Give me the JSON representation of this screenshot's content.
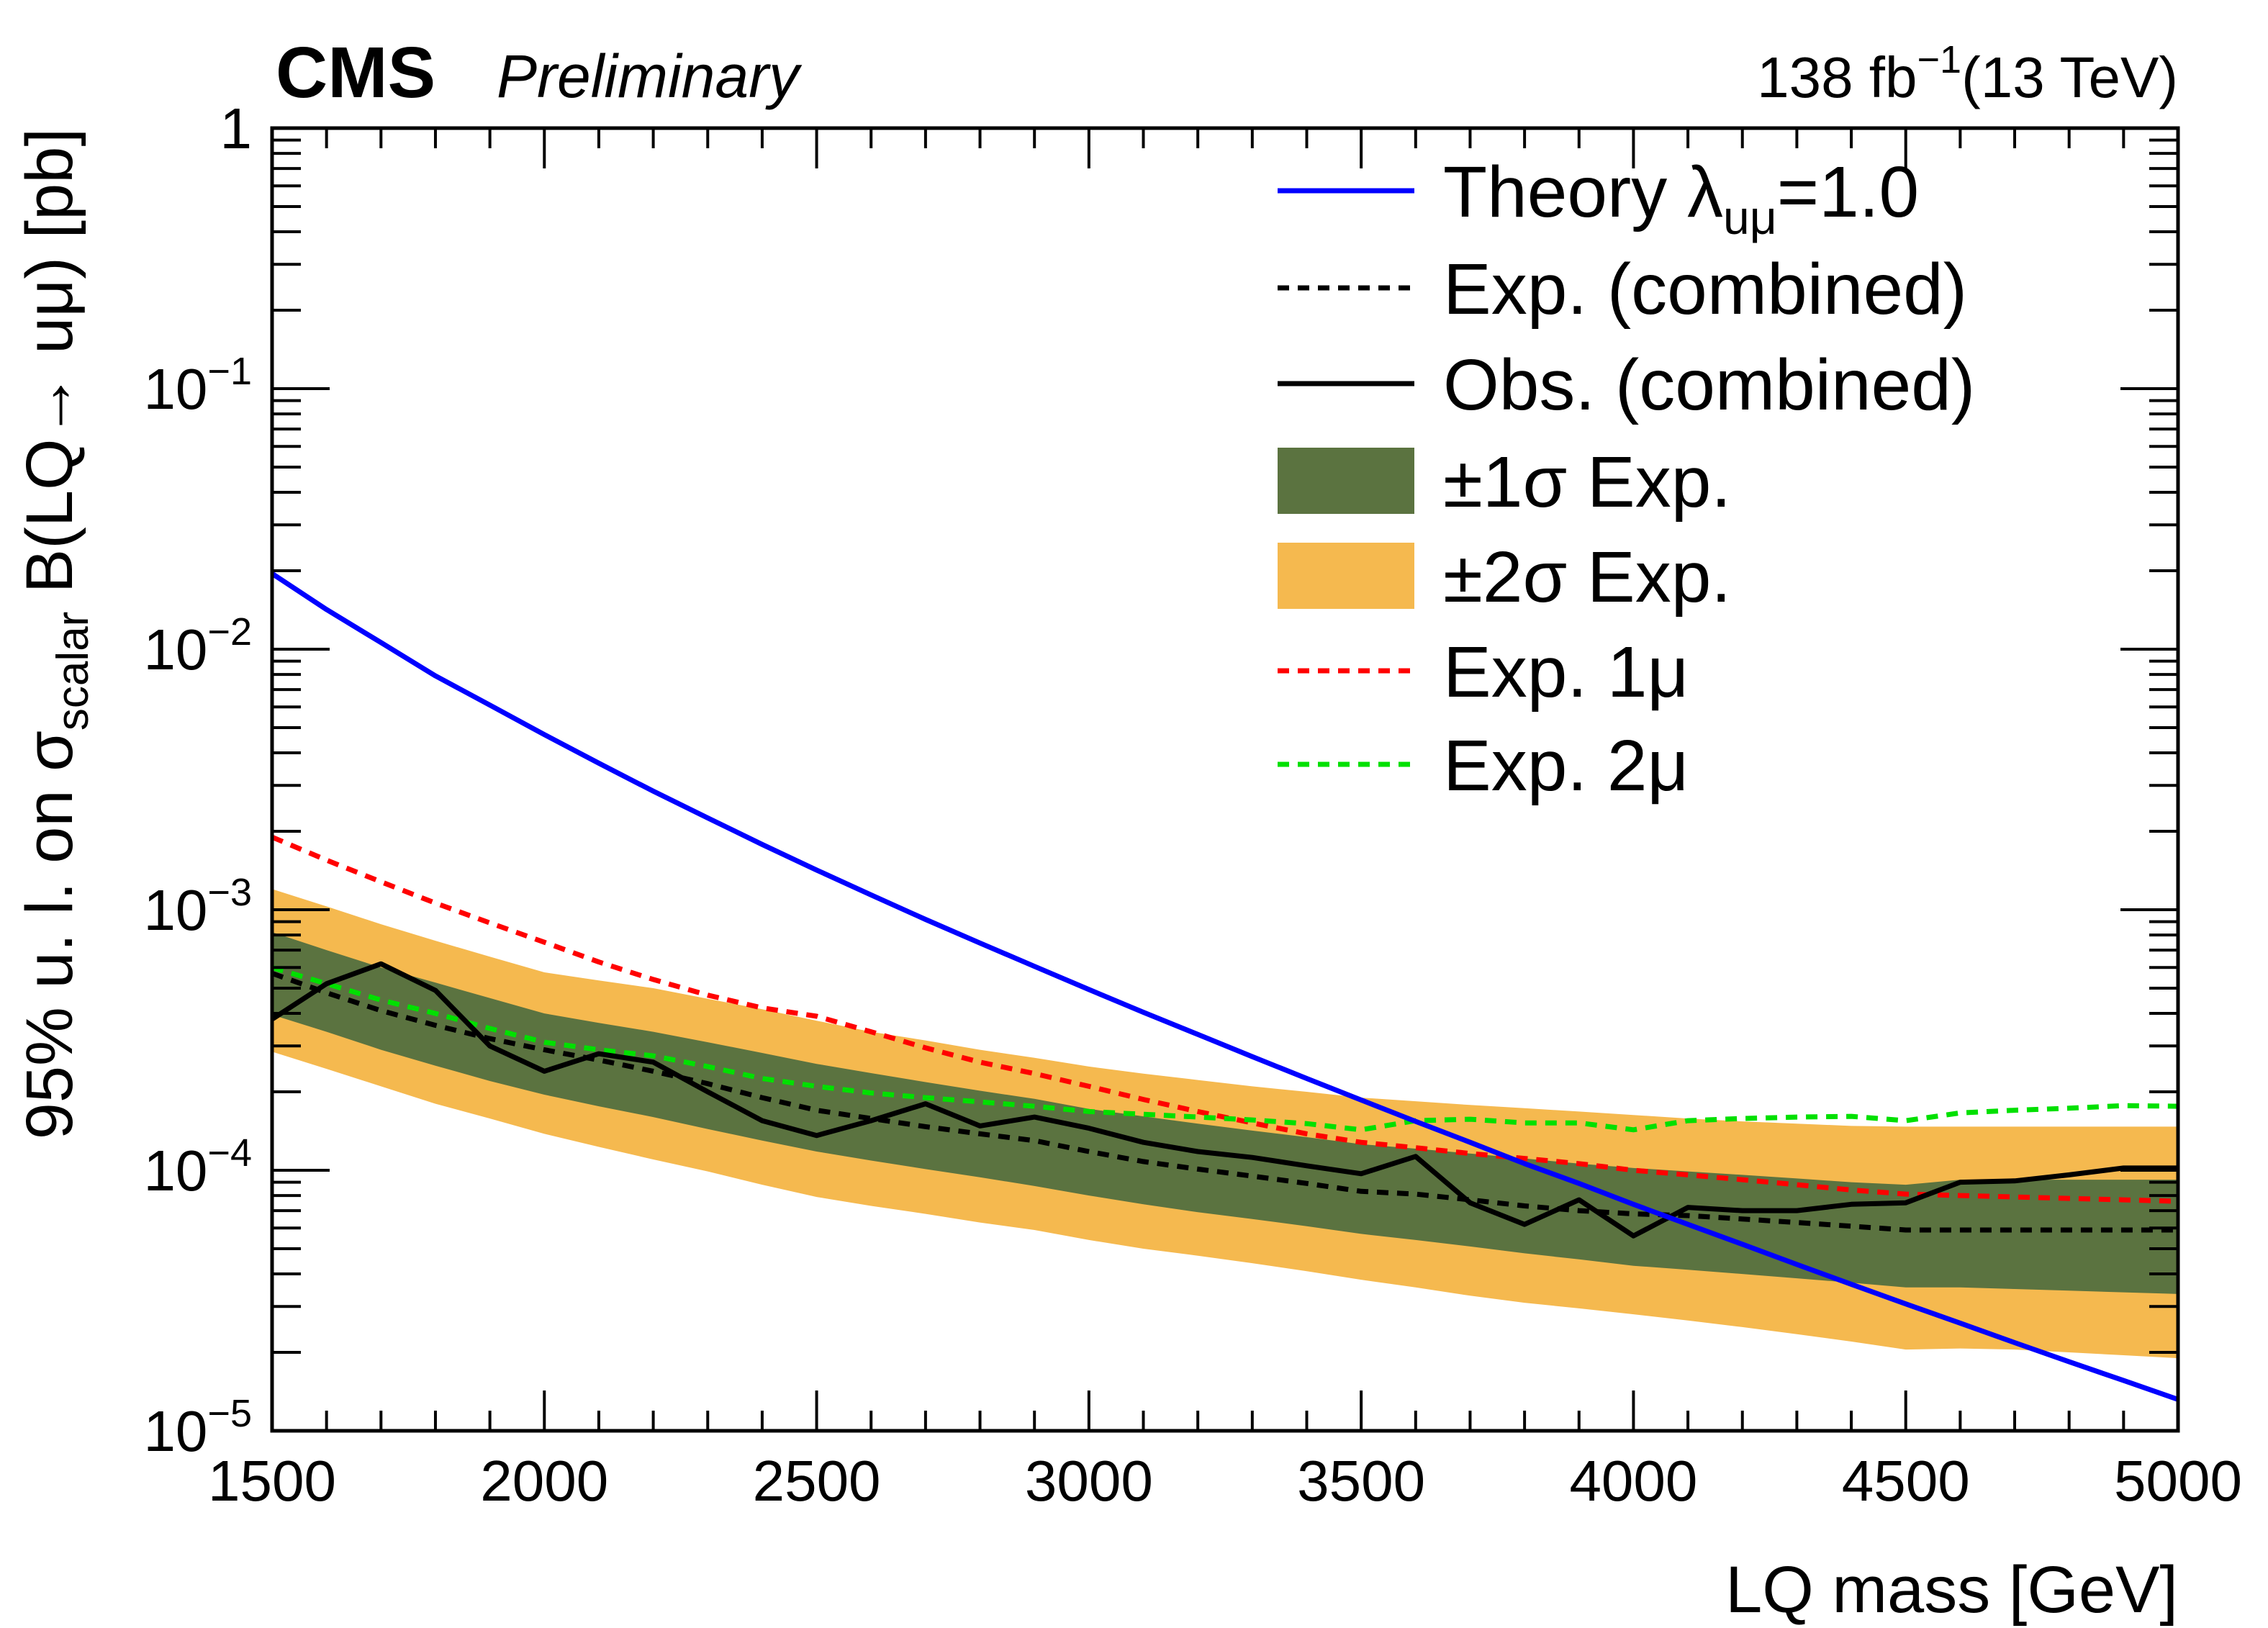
{
  "header": {
    "experiment": "CMS",
    "status": "Preliminary",
    "lumi": "138 fb",
    "lumi_exp": "−1",
    "energy": "(13 TeV)"
  },
  "chart_data": {
    "type": "line",
    "title": "",
    "xlabel": "LQ mass [GeV]",
    "ylabel": {
      "p1": "95% u. l. on σ",
      "sub": "scalar",
      "p2": " B(LQ→ uμ) [pb]"
    },
    "xlim": [
      1500,
      5000
    ],
    "ylim": [
      1e-05,
      1
    ],
    "yscale": "log",
    "xticks": [
      1500,
      2000,
      2500,
      3000,
      3500,
      4000,
      4500,
      5000
    ],
    "xticklabels": [
      "1500",
      "2000",
      "2500",
      "3000",
      "3500",
      "4000",
      "4500",
      "5000"
    ],
    "yticks": [
      {
        "value": 1e-05,
        "base": "10",
        "exp": "−5"
      },
      {
        "value": 0.0001,
        "base": "10",
        "exp": "−4"
      },
      {
        "value": 0.001,
        "base": "10",
        "exp": "−3"
      },
      {
        "value": 0.01,
        "base": "10",
        "exp": "−2"
      },
      {
        "value": 0.1,
        "base": "10",
        "exp": "−1"
      },
      {
        "value": 1,
        "base": "1",
        "exp": ""
      }
    ],
    "legend_position": "top-right",
    "legend": [
      {
        "key": "theory",
        "label": "Theory λ",
        "sub": "uμ",
        "suffix": "=1.0",
        "style": "solid",
        "color": "#0000ff"
      },
      {
        "key": "exp",
        "label": "Exp. (combined)",
        "style": "dashed",
        "color": "#000000"
      },
      {
        "key": "obs",
        "label": "Obs. (combined)",
        "style": "solid",
        "color": "#000000"
      },
      {
        "key": "band1",
        "label": "±1σ Exp.",
        "style": "box",
        "color": "#5b7340"
      },
      {
        "key": "band2",
        "label": "±2σ Exp.",
        "style": "box",
        "color": "#f5b94f"
      },
      {
        "key": "exp1mu",
        "label": "Exp. 1μ",
        "style": "dashed",
        "color": "#ff0000"
      },
      {
        "key": "exp2mu",
        "label": "Exp. 2μ",
        "style": "dashed",
        "color": "#00e000"
      }
    ],
    "series": [
      {
        "key": "theory",
        "name": "Theory λ_uμ=1.0",
        "x": [
          1500,
          1600,
          1700,
          1800,
          1900,
          2000,
          2100,
          2200,
          2300,
          2400,
          2500,
          2600,
          2700,
          2800,
          2900,
          3000,
          3100,
          3200,
          3300,
          3400,
          3500,
          3600,
          3700,
          3800,
          3900,
          4000,
          4100,
          4200,
          4300,
          4400,
          4500,
          4600,
          4700,
          4800,
          4900,
          5000
        ],
        "y": [
          0.0195,
          0.0142,
          0.0106,
          0.0079,
          0.0061,
          0.0047,
          0.00365,
          0.00285,
          0.00225,
          0.00178,
          0.00142,
          0.00114,
          0.000918,
          0.000745,
          0.000606,
          0.000494,
          0.000404,
          0.000332,
          0.000273,
          0.000225,
          0.000186,
          0.000154,
          0.000128,
          0.000106,
          8.9e-05,
          7.4e-05,
          6.2e-05,
          5.2e-05,
          4.35e-05,
          3.65e-05,
          3.07e-05,
          2.59e-05,
          2.18e-05,
          1.84e-05,
          1.56e-05,
          1.32e-05
        ]
      },
      {
        "key": "exp",
        "name": "Exp. (combined)",
        "x": [
          1500,
          1600,
          1700,
          1800,
          1900,
          2000,
          2100,
          2200,
          2300,
          2400,
          2500,
          2600,
          2700,
          2800,
          2900,
          3000,
          3100,
          3200,
          3300,
          3400,
          3500,
          3600,
          3700,
          3800,
          3900,
          4000,
          4100,
          4200,
          4300,
          4400,
          4500,
          4600,
          4700,
          4800,
          4900,
          5000
        ],
        "y": [
          0.00057,
          0.00048,
          0.00041,
          0.00036,
          0.00032,
          0.00029,
          0.000265,
          0.00024,
          0.000215,
          0.00019,
          0.00017,
          0.000158,
          0.000147,
          0.000138,
          0.00013,
          0.000118,
          0.000108,
          0.000101,
          9.5e-05,
          8.9e-05,
          8.3e-05,
          8.1e-05,
          7.7e-05,
          7.3e-05,
          7e-05,
          6.8e-05,
          6.7e-05,
          6.5e-05,
          6.3e-05,
          6.1e-05,
          5.9e-05,
          5.9e-05,
          5.9e-05,
          5.9e-05,
          5.9e-05,
          5.9e-05
        ]
      },
      {
        "key": "obs",
        "name": "Obs. (combined)",
        "x": [
          1500,
          1600,
          1700,
          1800,
          1900,
          2000,
          2100,
          2200,
          2300,
          2400,
          2500,
          2600,
          2700,
          2800,
          2900,
          3000,
          3100,
          3200,
          3300,
          3400,
          3500,
          3600,
          3700,
          3800,
          3900,
          4000,
          4100,
          4200,
          4300,
          4400,
          4500,
          4600,
          4700,
          4800,
          4900,
          5000
        ],
        "y": [
          0.00038,
          0.00052,
          0.00062,
          0.00049,
          0.0003,
          0.00024,
          0.00028,
          0.00026,
          0.0002,
          0.000155,
          0.000136,
          0.000155,
          0.00018,
          0.000148,
          0.00016,
          0.000145,
          0.000128,
          0.000118,
          0.000112,
          0.000104,
          9.7e-05,
          0.000113,
          7.5e-05,
          6.2e-05,
          7.7e-05,
          5.6e-05,
          7.2e-05,
          7e-05,
          7e-05,
          7.4e-05,
          7.5e-05,
          9e-05,
          9.1e-05,
          9.6e-05,
          0.000102,
          0.000102
        ]
      },
      {
        "key": "exp1mu",
        "name": "Exp. 1μ",
        "x": [
          1500,
          1600,
          1700,
          1800,
          1900,
          2000,
          2100,
          2200,
          2300,
          2400,
          2500,
          2600,
          2700,
          2800,
          2900,
          3000,
          3100,
          3200,
          3300,
          3400,
          3500,
          3600,
          3700,
          3800,
          3900,
          4000,
          4100,
          4200,
          4300,
          4400,
          4500,
          4600,
          4700,
          4800,
          4900,
          5000
        ],
        "y": [
          0.0019,
          0.00155,
          0.00128,
          0.00106,
          0.00089,
          0.00075,
          0.00063,
          0.00054,
          0.00047,
          0.00042,
          0.00039,
          0.00034,
          0.000295,
          0.00026,
          0.000235,
          0.00021,
          0.000187,
          0.000168,
          0.000152,
          0.000138,
          0.000128,
          0.000122,
          0.000116,
          0.000111,
          0.000106,
          0.0001,
          9.6e-05,
          9.2e-05,
          8.8e-05,
          8.4e-05,
          8.1e-05,
          8e-05,
          7.9e-05,
          7.8e-05,
          7.7e-05,
          7.6e-05
        ]
      },
      {
        "key": "exp2mu",
        "name": "Exp. 2μ",
        "x": [
          1500,
          1600,
          1700,
          1800,
          1900,
          2000,
          2100,
          2200,
          2300,
          2400,
          2500,
          2600,
          2700,
          2800,
          2900,
          3000,
          3100,
          3200,
          3300,
          3400,
          3500,
          3600,
          3700,
          3800,
          3900,
          4000,
          4100,
          4200,
          4300,
          4400,
          4500,
          4600,
          4700,
          4800,
          4900,
          5000
        ],
        "y": [
          0.0006,
          0.00052,
          0.00045,
          0.0004,
          0.00035,
          0.00031,
          0.00029,
          0.000275,
          0.00025,
          0.000225,
          0.00021,
          0.000198,
          0.00019,
          0.000183,
          0.000176,
          0.000168,
          0.000164,
          0.00016,
          0.000156,
          0.000151,
          0.000143,
          0.000155,
          0.000157,
          0.000152,
          0.000152,
          0.000143,
          0.000155,
          0.000158,
          0.00016,
          0.000161,
          0.000155,
          0.000166,
          0.00017,
          0.000173,
          0.000177,
          0.000176
        ]
      }
    ],
    "bands": [
      {
        "key": "band2",
        "name": "±2σ Exp.",
        "x": [
          1500,
          1600,
          1700,
          1800,
          1900,
          2000,
          2100,
          2200,
          2300,
          2400,
          2500,
          2600,
          2700,
          2800,
          2900,
          3000,
          3100,
          3200,
          3300,
          3400,
          3500,
          3600,
          3700,
          3800,
          3900,
          4000,
          4100,
          4200,
          4300,
          4400,
          4500,
          4600,
          4700,
          4800,
          4900,
          5000
        ],
        "low": [
          0.000285,
          0.000245,
          0.00021,
          0.00018,
          0.000158,
          0.000138,
          0.000123,
          0.00011,
          9.9e-05,
          8.8e-05,
          7.9e-05,
          7.3e-05,
          6.8e-05,
          6.3e-05,
          5.9e-05,
          5.4e-05,
          5e-05,
          4.7e-05,
          4.4e-05,
          4.1e-05,
          3.8e-05,
          3.55e-05,
          3.3e-05,
          3.1e-05,
          2.95e-05,
          2.8e-05,
          2.65e-05,
          2.5e-05,
          2.35e-05,
          2.2e-05,
          2.05e-05,
          2.07e-05,
          2.05e-05,
          2e-05,
          1.95e-05,
          1.9e-05
        ],
        "high": [
          0.0012,
          0.00103,
          0.00088,
          0.00076,
          0.00066,
          0.000575,
          0.000535,
          0.0005,
          0.000455,
          0.000415,
          0.000375,
          0.00034,
          0.000315,
          0.00029,
          0.00027,
          0.00025,
          0.000235,
          0.000222,
          0.00021,
          0.0002,
          0.00019,
          0.000184,
          0.000178,
          0.000173,
          0.000168,
          0.000163,
          0.000158,
          0.000154,
          0.000151,
          0.000148,
          0.000147,
          0.000147,
          0.000147,
          0.000147,
          0.000147,
          0.000147
        ]
      },
      {
        "key": "band1",
        "name": "±1σ Exp.",
        "x": [
          1500,
          1600,
          1700,
          1800,
          1900,
          2000,
          2100,
          2200,
          2300,
          2400,
          2500,
          2600,
          2700,
          2800,
          2900,
          3000,
          3100,
          3200,
          3300,
          3400,
          3500,
          3600,
          3700,
          3800,
          3900,
          4000,
          4100,
          4200,
          4300,
          4400,
          4500,
          4600,
          4700,
          4800,
          4900,
          5000
        ],
        "low": [
          0.000395,
          0.00034,
          0.00029,
          0.000252,
          0.00022,
          0.000195,
          0.000176,
          0.00016,
          0.000144,
          0.00013,
          0.000118,
          0.000109,
          0.000101,
          9.4e-05,
          8.7e-05,
          8e-05,
          7.4e-05,
          6.9e-05,
          6.5e-05,
          6.1e-05,
          5.7e-05,
          5.4e-05,
          5.1e-05,
          4.8e-05,
          4.55e-05,
          4.3e-05,
          4.15e-05,
          4e-05,
          3.85e-05,
          3.7e-05,
          3.55e-05,
          3.55e-05,
          3.5e-05,
          3.45e-05,
          3.4e-05,
          3.35e-05
        ],
        "high": [
          0.00082,
          0.0007,
          0.0006,
          0.000525,
          0.000458,
          0.0004,
          0.000368,
          0.00034,
          0.00031,
          0.000282,
          0.000256,
          0.000236,
          0.000218,
          0.000202,
          0.000188,
          0.000172,
          0.000161,
          0.000151,
          0.000142,
          0.000134,
          0.000126,
          0.000121,
          0.000116,
          0.000111,
          0.000106,
          0.000102,
          9.9e-05,
          9.6e-05,
          9.3e-05,
          9e-05,
          8.8e-05,
          9.2e-05,
          9.2e-05,
          9.2e-05,
          9.2e-05,
          9.2e-05
        ]
      }
    ]
  }
}
